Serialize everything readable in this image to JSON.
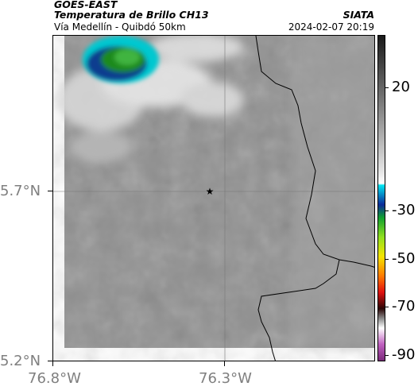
{
  "header": {
    "title_line1": "GOES-EAST",
    "title_line2": "Temperatura de Brillo CH13",
    "subtitle": "Vía Medellín - Quibdó 50km",
    "organization": "SIATA",
    "timestamp": "2024-02-07 20:19"
  },
  "map": {
    "marker_icon": "star-icon",
    "background_gray": "#8f8f8f",
    "cloud_colors": [
      "#0b3d8f",
      "#00aee8",
      "#00c9c4",
      "#1a8a1a",
      "#3fb43f"
    ],
    "y_axis_labels": [
      "5.7°N",
      "5.2°N"
    ],
    "x_axis_labels": [
      "76.8°W",
      "76.3°W"
    ]
  },
  "colorbar": {
    "labels": [
      "20",
      "-30",
      "-50",
      "-70",
      "-90"
    ],
    "unit_hint": "brightness temperature"
  }
}
